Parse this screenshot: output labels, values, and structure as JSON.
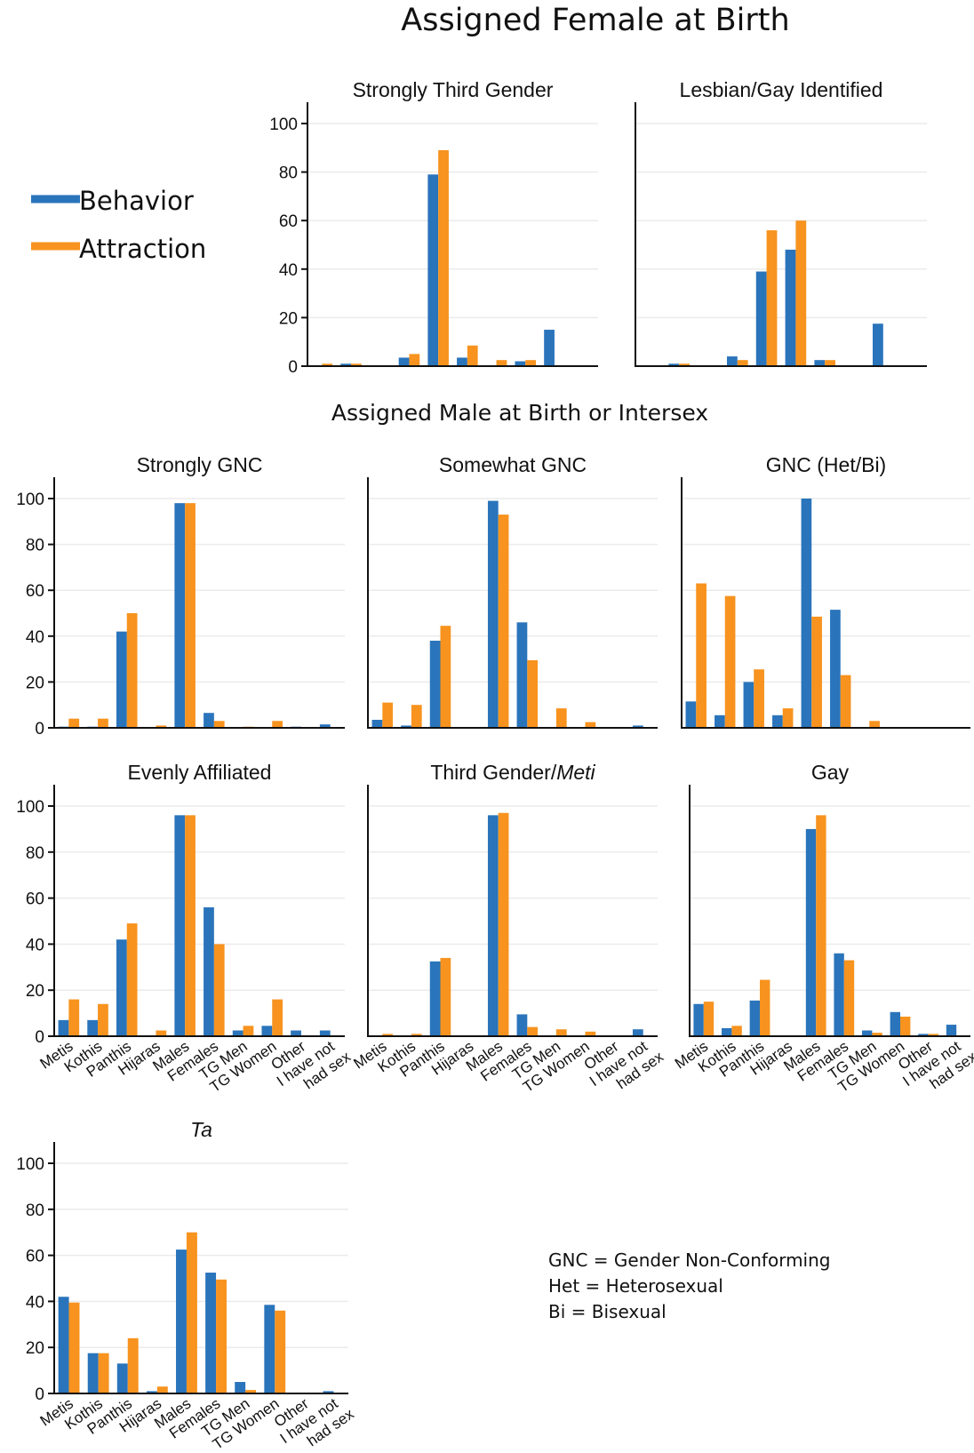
{
  "headings": {
    "female": "Assigned Female at Birth",
    "male": "Assigned Male at Birth or Intersex"
  },
  "legend": {
    "items": [
      {
        "label": "Behavior",
        "color": "#2a74bb"
      },
      {
        "label": "Attraction",
        "color": "#f7931e"
      }
    ]
  },
  "notes": [
    "GNC = Gender Non-Conforming",
    "Het = Heterosexual",
    "Bi = Bisexual"
  ],
  "chart_data": [
    {
      "type": "bar",
      "title": "Strongly Third Gender",
      "title_italic": "",
      "categories": [
        "Metis",
        "Kothis",
        "Panthis",
        "Hijaras",
        "Males",
        "Females",
        "TG Men",
        "TG Women",
        "Other",
        "I have not had sex"
      ],
      "series": [
        {
          "name": "Behavior",
          "values": [
            0,
            1,
            0,
            3.5,
            79,
            3.5,
            0,
            2,
            15,
            0
          ]
        },
        {
          "name": "Attraction",
          "values": [
            1,
            1,
            0,
            5,
            89,
            8.5,
            2.5,
            2.5,
            0,
            0
          ]
        }
      ],
      "ylim": [
        0,
        100
      ],
      "yticks": [
        0,
        20,
        40,
        60,
        80,
        100
      ],
      "show_yticks": true,
      "show_xticks": false
    },
    {
      "type": "bar",
      "title": "Lesbian/Gay Identified",
      "title_italic": "",
      "categories": [
        "Metis",
        "Kothis",
        "Panthis",
        "Hijaras",
        "Males",
        "Females",
        "TG Men",
        "TG Women",
        "Other",
        "I have not had sex"
      ],
      "series": [
        {
          "name": "Behavior",
          "values": [
            0,
            1,
            0,
            4,
            39,
            48,
            2.5,
            0,
            17.5,
            0
          ]
        },
        {
          "name": "Attraction",
          "values": [
            0,
            1,
            0,
            2.5,
            56,
            60,
            2.5,
            0,
            0,
            0
          ]
        }
      ],
      "ylim": [
        0,
        100
      ],
      "yticks": [
        0,
        20,
        40,
        60,
        80,
        100
      ],
      "show_yticks": false,
      "show_xticks": false
    },
    {
      "type": "bar",
      "title": "Strongly GNC",
      "title_italic": "",
      "categories": [
        "Metis",
        "Kothis",
        "Panthis",
        "Hijaras",
        "Males",
        "Females",
        "TG Men",
        "TG Women",
        "Other",
        "I have not had sex"
      ],
      "series": [
        {
          "name": "Behavior",
          "values": [
            0.5,
            0.5,
            42,
            0,
            98,
            6.5,
            0,
            0,
            0.5,
            1.5
          ]
        },
        {
          "name": "Attraction",
          "values": [
            4,
            4,
            50,
            1,
            98,
            3,
            0.5,
            3,
            0,
            0
          ]
        }
      ],
      "ylim": [
        0,
        100
      ],
      "yticks": [
        0,
        20,
        40,
        60,
        80,
        100
      ],
      "show_yticks": true,
      "show_xticks": false
    },
    {
      "type": "bar",
      "title": "Somewhat GNC",
      "title_italic": "",
      "categories": [
        "Metis",
        "Kothis",
        "Panthis",
        "Hijaras",
        "Males",
        "Females",
        "TG Men",
        "TG Women",
        "Other",
        "I have not had sex"
      ],
      "series": [
        {
          "name": "Behavior",
          "values": [
            3.5,
            1,
            38,
            0,
            99,
            46,
            0,
            0,
            0,
            1
          ]
        },
        {
          "name": "Attraction",
          "values": [
            11,
            10,
            44.5,
            0,
            93,
            29.5,
            8.5,
            2.5,
            0,
            0
          ]
        }
      ],
      "ylim": [
        0,
        100
      ],
      "yticks": [
        0,
        20,
        40,
        60,
        80,
        100
      ],
      "show_yticks": false,
      "show_xticks": false
    },
    {
      "type": "bar",
      "title": "GNC (Het/Bi)",
      "title_italic": "",
      "categories": [
        "Metis",
        "Kothis",
        "Panthis",
        "Hijaras",
        "Males",
        "Females",
        "TG Men",
        "TG Women",
        "Other",
        "I have not had sex"
      ],
      "series": [
        {
          "name": "Behavior",
          "values": [
            11.5,
            5.5,
            20,
            5.5,
            100,
            51.5,
            0,
            0,
            0,
            0
          ]
        },
        {
          "name": "Attraction",
          "values": [
            63,
            57.5,
            25.5,
            8.5,
            48.5,
            23,
            3,
            0,
            0,
            0
          ]
        }
      ],
      "ylim": [
        0,
        100
      ],
      "yticks": [
        0,
        20,
        40,
        60,
        80,
        100
      ],
      "show_yticks": false,
      "show_xticks": false
    },
    {
      "type": "bar",
      "title": "Evenly Affiliated",
      "title_italic": "",
      "categories": [
        "Metis",
        "Kothis",
        "Panthis",
        "Hijaras",
        "Males",
        "Females",
        "TG Men",
        "TG Women",
        "Other",
        "I have not had sex"
      ],
      "series": [
        {
          "name": "Behavior",
          "values": [
            7,
            7,
            42,
            0,
            96,
            56,
            2.5,
            4.5,
            2.5,
            2.5
          ]
        },
        {
          "name": "Attraction",
          "values": [
            16,
            14,
            49,
            2.5,
            96,
            40,
            4.5,
            16,
            0,
            0
          ]
        }
      ],
      "ylim": [
        0,
        100
      ],
      "yticks": [
        0,
        20,
        40,
        60,
        80,
        100
      ],
      "show_yticks": true,
      "show_xticks": true
    },
    {
      "type": "bar",
      "title": "Third Gender/",
      "title_italic": "Meti",
      "categories": [
        "Metis",
        "Kothis",
        "Panthis",
        "Hijaras",
        "Males",
        "Females",
        "TG Men",
        "TG Women",
        "Other",
        "I have not had sex"
      ],
      "series": [
        {
          "name": "Behavior",
          "values": [
            0,
            0,
            32.5,
            0,
            96,
            9.5,
            0,
            0,
            0,
            3
          ]
        },
        {
          "name": "Attraction",
          "values": [
            1,
            1,
            34,
            0,
            97,
            4,
            3,
            2,
            0,
            0
          ]
        }
      ],
      "ylim": [
        0,
        100
      ],
      "yticks": [
        0,
        20,
        40,
        60,
        80,
        100
      ],
      "show_yticks": false,
      "show_xticks": true
    },
    {
      "type": "bar",
      "title": "Gay",
      "title_italic": "",
      "categories": [
        "Metis",
        "Kothis",
        "Panthis",
        "Hijaras",
        "Males",
        "Females",
        "TG Men",
        "TG Women",
        "Other",
        "I have not had sex"
      ],
      "series": [
        {
          "name": "Behavior",
          "values": [
            14,
            3.5,
            15.5,
            0,
            90,
            36,
            2.5,
            10.5,
            1,
            5
          ]
        },
        {
          "name": "Attraction",
          "values": [
            15,
            4.5,
            24.5,
            0,
            96,
            33,
            1.5,
            8.5,
            1,
            0
          ]
        }
      ],
      "ylim": [
        0,
        100
      ],
      "yticks": [
        0,
        20,
        40,
        60,
        80,
        100
      ],
      "show_yticks": false,
      "show_xticks": true
    },
    {
      "type": "bar",
      "title": "",
      "title_italic": "Ta",
      "categories": [
        "Metis",
        "Kothis",
        "Panthis",
        "Hijaras",
        "Males",
        "Females",
        "TG Men",
        "TG Women",
        "Other",
        "I have not had sex"
      ],
      "series": [
        {
          "name": "Behavior",
          "values": [
            42,
            17.5,
            13,
            1,
            62.5,
            52.5,
            5,
            38.5,
            0,
            1
          ]
        },
        {
          "name": "Attraction",
          "values": [
            39.5,
            17.5,
            24,
            3,
            70,
            49.5,
            1.5,
            36,
            0,
            0
          ]
        }
      ],
      "ylim": [
        0,
        100
      ],
      "yticks": [
        0,
        20,
        40,
        60,
        80,
        100
      ],
      "show_yticks": true,
      "show_xticks": true
    }
  ]
}
